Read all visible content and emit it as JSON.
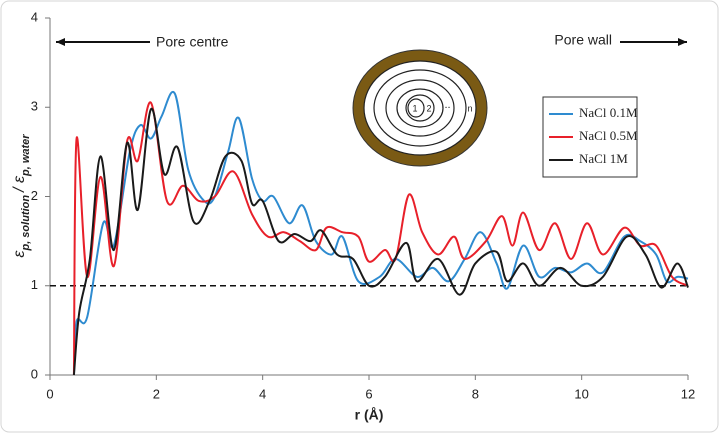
{
  "chart_data": {
    "type": "line",
    "xlabel": "r (Å)",
    "ylabel_parts": [
      "ε",
      "p, solution",
      "/ ε",
      "p, water"
    ],
    "xlim": [
      0,
      12
    ],
    "ylim": [
      0,
      4
    ],
    "xticks": [
      0,
      2,
      4,
      6,
      8,
      10,
      12
    ],
    "yticks": [
      0,
      1,
      2,
      3,
      4
    ],
    "hline": 1,
    "legend": "right",
    "annotations": [
      "Pore centre",
      "Pore wall"
    ],
    "inset_labels": [
      "1",
      "2",
      "...",
      "n"
    ],
    "series": [
      {
        "name": "NaCl 0.1M",
        "color": "#2e8bd0",
        "x": [
          0.45,
          0.5,
          0.7,
          1.0,
          1.2,
          1.5,
          1.7,
          1.9,
          2.1,
          2.35,
          2.6,
          2.9,
          3.1,
          3.35,
          3.55,
          3.8,
          4.0,
          4.2,
          4.5,
          4.75,
          5.0,
          5.3,
          5.5,
          5.8,
          6.2,
          6.5,
          6.9,
          7.2,
          7.5,
          7.8,
          8.1,
          8.4,
          8.6,
          8.9,
          9.2,
          9.5,
          9.8,
          10.1,
          10.4,
          10.8,
          11.1,
          11.4,
          11.6,
          11.8,
          12.0
        ],
        "values": [
          0.0,
          0.6,
          0.65,
          1.7,
          1.45,
          2.5,
          2.8,
          2.65,
          2.9,
          3.15,
          2.3,
          1.95,
          2.0,
          2.5,
          2.88,
          2.2,
          1.95,
          2.0,
          1.7,
          1.9,
          1.5,
          1.35,
          1.55,
          1.05,
          1.1,
          1.3,
          1.1,
          1.2,
          1.05,
          1.3,
          1.6,
          1.25,
          0.97,
          1.45,
          1.1,
          1.2,
          1.15,
          1.25,
          1.15,
          1.55,
          1.5,
          1.35,
          1.05,
          1.1,
          1.08
        ]
      },
      {
        "name": "NaCl 0.5M",
        "color": "#e8202a",
        "x": [
          0.45,
          0.5,
          0.7,
          0.95,
          1.2,
          1.45,
          1.65,
          1.9,
          2.2,
          2.5,
          2.8,
          3.1,
          3.45,
          3.8,
          4.1,
          4.4,
          4.7,
          5.0,
          5.2,
          5.5,
          5.8,
          6.0,
          6.3,
          6.5,
          6.75,
          7.0,
          7.3,
          7.6,
          7.8,
          8.2,
          8.5,
          8.7,
          8.9,
          9.2,
          9.5,
          9.8,
          10.1,
          10.4,
          10.8,
          11.1,
          11.4,
          11.7,
          12.0
        ],
        "values": [
          0.0,
          2.65,
          1.1,
          2.22,
          1.22,
          2.62,
          2.4,
          3.05,
          1.95,
          2.12,
          1.95,
          2.0,
          2.28,
          1.8,
          1.55,
          1.6,
          1.5,
          1.4,
          1.65,
          1.6,
          1.55,
          1.27,
          1.4,
          1.3,
          2.02,
          1.6,
          1.35,
          1.55,
          1.3,
          1.5,
          1.78,
          1.45,
          1.82,
          1.4,
          1.7,
          1.3,
          1.7,
          1.35,
          1.65,
          1.45,
          1.45,
          1.1,
          1.0
        ]
      },
      {
        "name": "NaCl 1M",
        "color": "#1a1a1a",
        "x": [
          0.45,
          0.55,
          0.75,
          0.95,
          1.2,
          1.45,
          1.65,
          1.9,
          2.15,
          2.4,
          2.7,
          3.0,
          3.3,
          3.6,
          3.8,
          4.0,
          4.3,
          4.6,
          4.9,
          5.1,
          5.4,
          5.7,
          6.0,
          6.3,
          6.7,
          6.9,
          7.3,
          7.7,
          8.0,
          8.4,
          8.6,
          8.9,
          9.2,
          9.6,
          10.0,
          10.4,
          10.85,
          11.2,
          11.5,
          11.8,
          12.0
        ],
        "values": [
          0.0,
          0.7,
          1.3,
          2.45,
          1.4,
          2.6,
          1.85,
          2.98,
          2.25,
          2.55,
          1.72,
          1.95,
          2.45,
          2.4,
          1.92,
          1.95,
          1.5,
          1.58,
          1.5,
          1.62,
          1.35,
          1.3,
          1.0,
          1.1,
          1.48,
          1.05,
          1.3,
          0.9,
          1.25,
          1.38,
          1.05,
          1.25,
          1.0,
          1.2,
          1.0,
          1.1,
          1.55,
          1.35,
          0.98,
          1.25,
          0.98
        ]
      }
    ]
  }
}
